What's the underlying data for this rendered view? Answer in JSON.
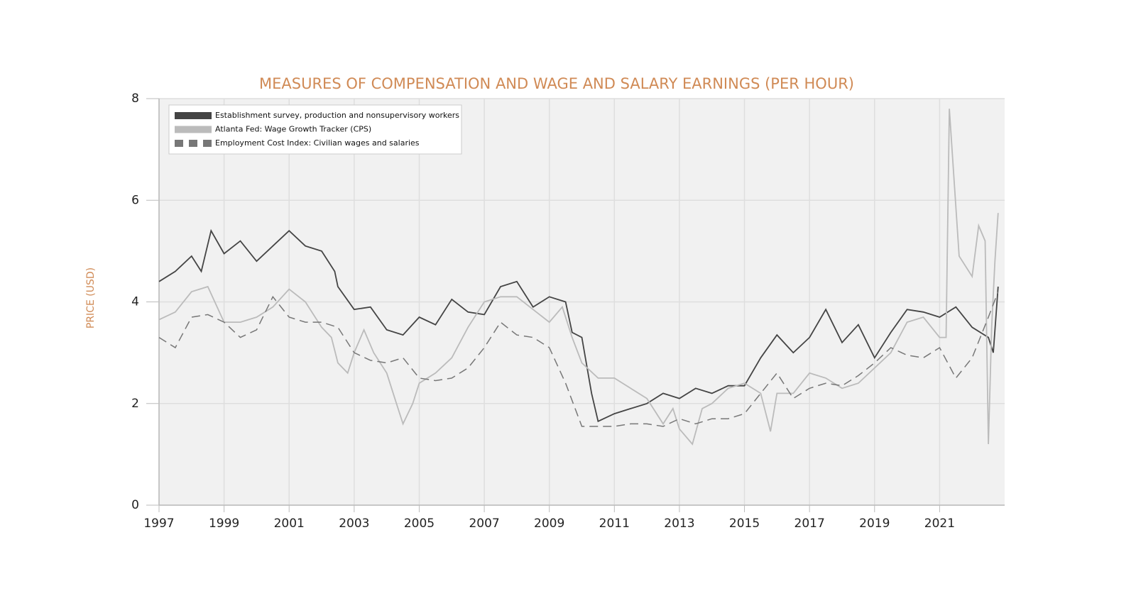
{
  "chart_data": {
    "type": "line",
    "title": "MEASURES OF COMPENSATION AND WAGE AND SALARY EARNINGS (PER HOUR)",
    "y_label": "PRICE (USD)",
    "xlim": [
      1997,
      2023
    ],
    "xticks": [
      1997,
      1999,
      2001,
      2003,
      2005,
      2007,
      2009,
      2011,
      2013,
      2015,
      2017,
      2019,
      2021
    ],
    "ylim": [
      0,
      8
    ],
    "yticks": [
      0,
      2,
      4,
      6,
      8
    ],
    "grid": true,
    "legend": "upper-left",
    "series": [
      {
        "name": "Establishment survey, production and nonsupervisory workers",
        "color": "#444444",
        "line_style": "solid",
        "x": [
          1997.0,
          1997.5,
          1998.0,
          1998.3,
          1998.6,
          1999.0,
          1999.5,
          2000.0,
          2000.5,
          2001.0,
          2001.5,
          2002.0,
          2002.4,
          2002.5,
          2003.0,
          2003.5,
          2004.0,
          2004.5,
          2005.0,
          2005.5,
          2006.0,
          2006.5,
          2007.0,
          2007.5,
          2008.0,
          2008.5,
          2009.0,
          2009.5,
          2009.7,
          2010.0,
          2010.3,
          2010.5,
          2011.0,
          2011.5,
          2012.0,
          2012.5,
          2013.0,
          2013.5,
          2014.0,
          2014.5,
          2015.0,
          2015.5,
          2016.0,
          2016.5,
          2017.0,
          2017.5,
          2018.0,
          2018.5,
          2019.0,
          2019.5,
          2020.0,
          2020.5,
          2021.0,
          2021.5,
          2022.0,
          2022.5,
          2022.65,
          2022.8
        ],
        "values": [
          4.4,
          4.6,
          4.9,
          4.6,
          5.4,
          4.95,
          5.2,
          4.8,
          5.1,
          5.4,
          5.1,
          5.0,
          4.6,
          4.3,
          3.85,
          3.9,
          3.45,
          3.35,
          3.7,
          3.55,
          4.05,
          3.8,
          3.75,
          4.3,
          4.4,
          3.9,
          4.1,
          4.0,
          3.4,
          3.3,
          2.2,
          1.65,
          1.8,
          1.9,
          2.0,
          2.2,
          2.1,
          2.3,
          2.2,
          2.35,
          2.35,
          2.9,
          3.35,
          3.0,
          3.3,
          3.85,
          3.2,
          3.55,
          2.9,
          3.4,
          3.85,
          3.8,
          3.7,
          3.9,
          3.5,
          3.3,
          3.0,
          4.3
        ]
      },
      {
        "name": "Atlanta Fed: Wage Growth Tracker (CPS)",
        "color": "#bbbbbb",
        "line_style": "solid",
        "x": [
          1997.0,
          1997.5,
          1998.0,
          1998.5,
          1999.0,
          1999.5,
          2000.0,
          2000.5,
          2001.0,
          2001.5,
          2002.0,
          2002.3,
          2002.5,
          2002.8,
          2003.0,
          2003.3,
          2003.6,
          2004.0,
          2004.3,
          2004.5,
          2004.8,
          2005.0,
          2005.5,
          2006.0,
          2006.5,
          2007.0,
          2007.5,
          2008.0,
          2008.5,
          2009.0,
          2009.4,
          2009.7,
          2010.0,
          2010.5,
          2011.0,
          2011.5,
          2012.0,
          2012.5,
          2012.8,
          2013.0,
          2013.4,
          2013.7,
          2014.0,
          2014.5,
          2015.0,
          2015.5,
          2015.8,
          2016.0,
          2016.5,
          2017.0,
          2017.5,
          2018.0,
          2018.5,
          2019.0,
          2019.5,
          2020.0,
          2020.5,
          2021.0,
          2021.2,
          2021.3,
          2021.6,
          2022.0,
          2022.2,
          2022.4,
          2022.5,
          2022.6,
          2022.7,
          2022.8
        ],
        "values": [
          3.65,
          3.8,
          4.2,
          4.3,
          3.6,
          3.6,
          3.7,
          3.9,
          4.25,
          4.0,
          3.5,
          3.3,
          2.8,
          2.6,
          3.0,
          3.45,
          3.0,
          2.6,
          2.0,
          1.6,
          2.0,
          2.4,
          2.6,
          2.9,
          3.5,
          4.0,
          4.1,
          4.1,
          3.85,
          3.6,
          3.9,
          3.3,
          2.8,
          2.5,
          2.5,
          2.3,
          2.1,
          1.6,
          1.9,
          1.5,
          1.2,
          1.9,
          2.0,
          2.3,
          2.4,
          2.2,
          1.45,
          2.2,
          2.2,
          2.6,
          2.5,
          2.3,
          2.4,
          2.7,
          3.0,
          3.6,
          3.7,
          3.3,
          3.3,
          7.8,
          4.9,
          4.5,
          5.5,
          5.2,
          1.2,
          3.5,
          4.8,
          5.75
        ]
      },
      {
        "name": "Employment Cost Index: Civilian wages and salaries",
        "color": "#777777",
        "line_style": "dashed",
        "x": [
          1997.0,
          1997.5,
          1998.0,
          1998.5,
          1999.0,
          1999.5,
          2000.0,
          2000.5,
          2001.0,
          2001.5,
          2002.0,
          2002.5,
          2003.0,
          2003.5,
          2004.0,
          2004.5,
          2005.0,
          2005.5,
          2006.0,
          2006.5,
          2007.0,
          2007.5,
          2008.0,
          2008.5,
          2009.0,
          2009.5,
          2010.0,
          2010.5,
          2011.0,
          2011.5,
          2012.0,
          2012.5,
          2013.0,
          2013.5,
          2014.0,
          2014.5,
          2015.0,
          2015.5,
          2016.0,
          2016.5,
          2017.0,
          2017.5,
          2018.0,
          2018.5,
          2019.0,
          2019.5,
          2020.0,
          2020.5,
          2021.0,
          2021.5,
          2022.0,
          2022.5,
          2022.8
        ],
        "values": [
          3.3,
          3.1,
          3.7,
          3.75,
          3.6,
          3.3,
          3.45,
          4.1,
          3.7,
          3.6,
          3.6,
          3.5,
          3.0,
          2.85,
          2.8,
          2.9,
          2.5,
          2.45,
          2.5,
          2.7,
          3.1,
          3.6,
          3.35,
          3.3,
          3.1,
          2.4,
          1.55,
          1.55,
          1.55,
          1.6,
          1.6,
          1.55,
          1.7,
          1.6,
          1.7,
          1.7,
          1.8,
          2.2,
          2.6,
          2.1,
          2.3,
          2.4,
          2.35,
          2.55,
          2.8,
          3.1,
          2.95,
          2.9,
          3.1,
          2.5,
          2.9,
          3.7,
          4.2
        ]
      }
    ]
  }
}
